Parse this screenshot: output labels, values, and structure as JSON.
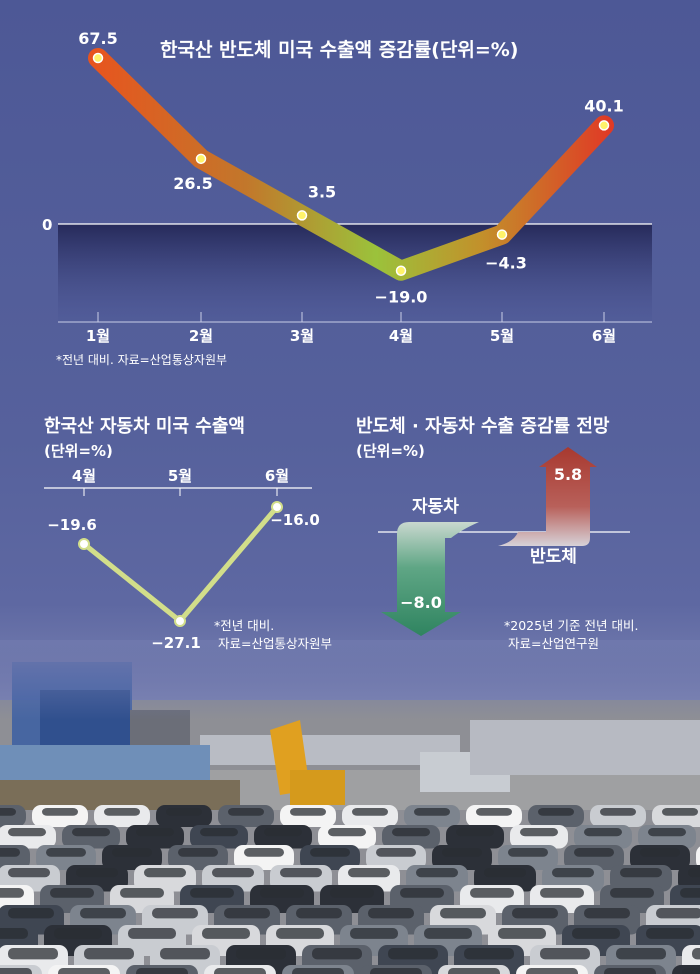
{
  "chart_data": [
    {
      "type": "line",
      "title": "한국산 반도체 미국 수출액 증감률(단위=%)",
      "categories": [
        "1월",
        "2월",
        "3월",
        "4월",
        "5월",
        "6월"
      ],
      "values": [
        67.5,
        26.5,
        3.5,
        -19.0,
        -4.3,
        40.1
      ],
      "value_labels": [
        "67.5",
        "26.5",
        "3.5",
        "−19.0",
        "−4.3",
        "40.1"
      ],
      "zero_label": "0",
      "ylim": [
        -28,
        72
      ],
      "note": "*전년 대비. 자료=산업통상자원부"
    },
    {
      "type": "line",
      "title": "한국산 자동차 미국 수출액",
      "subtitle": "(단위=%)",
      "categories": [
        "4월",
        "5월",
        "6월"
      ],
      "values": [
        -19.6,
        -27.1,
        -16.0
      ],
      "value_labels": [
        "−19.6",
        "−27.1",
        "−16.0"
      ],
      "ylim": [
        -28,
        -15
      ],
      "note_lines": [
        "*전년 대비.",
        "자료=산업통상자원부"
      ]
    },
    {
      "type": "bar",
      "title": "반도체 · 자동차 수출 증감률 전망",
      "subtitle": "(단위=%)",
      "categories": [
        "자동차",
        "반도체"
      ],
      "values": [
        -8.0,
        5.8
      ],
      "value_labels": [
        "−8.0",
        "5.8"
      ],
      "note_lines": [
        "*2025년 기준 전년 대비.",
        "자료=산업연구원"
      ]
    }
  ],
  "colors": {
    "background": "#4f5a97",
    "text": "#ffffff",
    "zero_area": "#2c3166",
    "line_start": "#e8541e",
    "line_mid": "#9bc23b",
    "line_end": "#e03a25",
    "auto_line": "#d2de8a",
    "arrow_up": "#a9413a",
    "arrow_down": "#3f8f6a"
  },
  "photo": {
    "description_icon": "car-parking-lot-photo"
  }
}
